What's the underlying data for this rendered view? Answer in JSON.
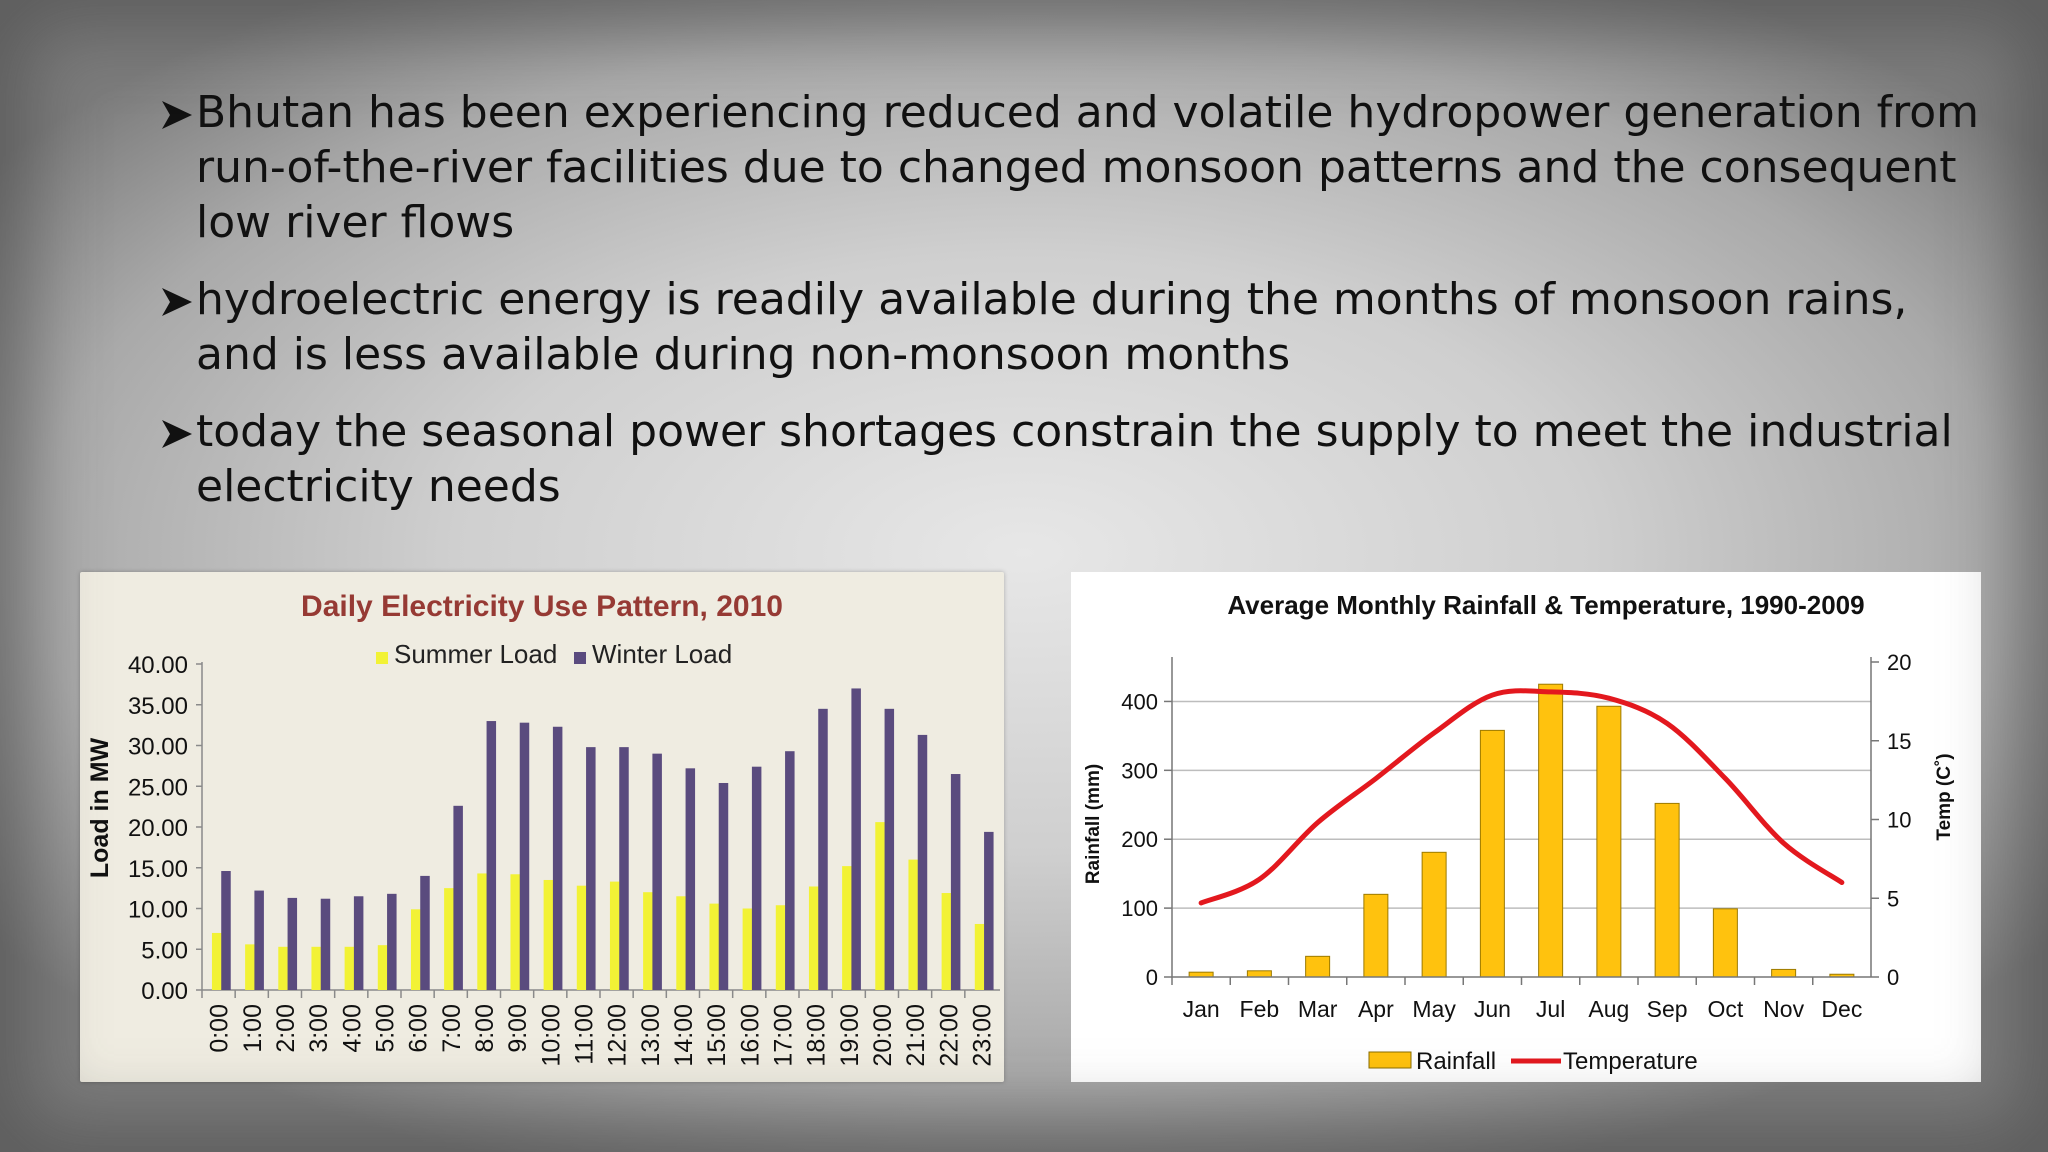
{
  "bullets": [
    {
      "text": "Bhutan has been experiencing reduced and volatile hydropower generation from run-of-the-river facilities due to changed monsoon patterns and the consequent low river flows"
    },
    {
      "text": "hydroelectric energy is readily available during the months of monsoon rains, and is less available during non-monsoon months"
    },
    {
      "text": "today the seasonal power shortages constrain the supply to meet the industrial electricity needs"
    }
  ],
  "colors": {
    "summer": "#f2f235",
    "winter": "#5a4b7e",
    "title_left": "#963a34",
    "rainfall": "#ffc20e",
    "temperature": "#e3181e"
  },
  "chart_data": [
    {
      "type": "bar",
      "title": "Daily Electricity Use Pattern, 2010",
      "ylabel": "Load in MW",
      "xlabel": "",
      "ylim": [
        0,
        40
      ],
      "yticks": [
        "0.00",
        "5.00",
        "10.00",
        "15.00",
        "20.00",
        "25.00",
        "30.00",
        "35.00",
        "40.00"
      ],
      "legend_position": "top",
      "grid": false,
      "categories": [
        "0:00",
        "1:00",
        "2:00",
        "3:00",
        "4:00",
        "5:00",
        "6:00",
        "7:00",
        "8:00",
        "9:00",
        "10:00",
        "11:00",
        "12:00",
        "13:00",
        "14:00",
        "15:00",
        "16:00",
        "17:00",
        "18:00",
        "19:00",
        "20:00",
        "21:00",
        "22:00",
        "23:00"
      ],
      "series": [
        {
          "name": "Summer Load",
          "values": [
            7.0,
            5.6,
            5.3,
            5.3,
            5.3,
            5.5,
            9.9,
            12.5,
            14.3,
            14.2,
            13.5,
            12.8,
            13.3,
            12.0,
            11.5,
            10.6,
            10.0,
            10.4,
            12.7,
            15.2,
            20.6,
            16.0,
            11.9,
            8.1
          ]
        },
        {
          "name": "Winter Load",
          "values": [
            14.6,
            12.2,
            11.3,
            11.2,
            11.5,
            11.8,
            14.0,
            22.6,
            33.0,
            32.8,
            32.3,
            29.8,
            29.8,
            29.0,
            27.2,
            25.4,
            27.4,
            29.3,
            34.5,
            37.0,
            34.5,
            31.3,
            26.5,
            19.4
          ]
        }
      ]
    },
    {
      "type": "bar",
      "title": "Average Monthly Rainfall & Temperature, 1990-2009",
      "ylabel": "Rainfall (mm)",
      "y2label": "Temp (C˚)",
      "xlabel": "",
      "ylim": [
        0,
        450
      ],
      "yticks": [
        "0",
        "100",
        "200",
        "300",
        "400"
      ],
      "y2lim": [
        0,
        20
      ],
      "y2ticks": [
        "0",
        "5",
        "10",
        "15",
        "20"
      ],
      "legend_position": "bottom",
      "grid": true,
      "categories": [
        "Jan",
        "Feb",
        "Mar",
        "Apr",
        "May",
        "Jun",
        "Jul",
        "Aug",
        "Sep",
        "Oct",
        "Nov",
        "Dec"
      ],
      "series": [
        {
          "name": "Rainfall",
          "type": "bar",
          "axis": "left",
          "values": [
            7,
            9,
            30,
            120,
            181,
            358,
            425,
            393,
            252,
            99,
            11,
            4
          ]
        },
        {
          "name": "Temperature",
          "type": "line",
          "axis": "right",
          "values": [
            4.7,
            6.2,
            9.8,
            12.6,
            15.5,
            17.9,
            18.1,
            17.7,
            16.1,
            12.6,
            8.5,
            6.0
          ]
        }
      ]
    }
  ]
}
